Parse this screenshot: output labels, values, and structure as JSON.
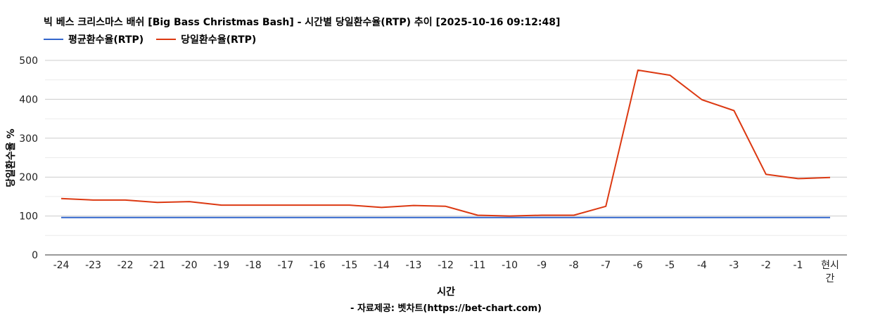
{
  "chart_data": {
    "type": "line",
    "title": "빅 베스 크리스마스 배쉬 [Big Bass Christmas Bash] - 시간별 당일환수율(RTP) 추이 [2025-10-16 09:12:48]",
    "xlabel": "시간",
    "ylabel": "당일환수율 %",
    "source": "- 자료제공: 벳차트(https://bet-chart.com)",
    "categories": [
      "-24",
      "-23",
      "-22",
      "-21",
      "-20",
      "-19",
      "-18",
      "-17",
      "-16",
      "-15",
      "-14",
      "-13",
      "-12",
      "-11",
      "-10",
      "-9",
      "-8",
      "-7",
      "-6",
      "-5",
      "-4",
      "-3",
      "-2",
      "-1",
      "현시간"
    ],
    "ylim": [
      0,
      500
    ],
    "yticks": [
      0,
      100,
      200,
      300,
      400,
      500
    ],
    "grid": true,
    "legend_position": "top-left",
    "series": [
      {
        "name": "평균환수율(RTP)",
        "color": "#3366cc",
        "values": [
          96,
          96,
          96,
          96,
          96,
          96,
          96,
          96,
          96,
          96,
          96,
          96,
          96,
          96,
          96,
          96,
          96,
          96,
          96,
          96,
          96,
          96,
          96,
          96,
          96
        ]
      },
      {
        "name": "당일환수율(RTP)",
        "color": "#dc3912",
        "values": [
          145,
          141,
          141,
          135,
          137,
          128,
          128,
          128,
          128,
          128,
          122,
          127,
          125,
          102,
          100,
          102,
          102,
          125,
          475,
          462,
          399,
          371,
          207,
          196,
          199
        ]
      }
    ]
  }
}
